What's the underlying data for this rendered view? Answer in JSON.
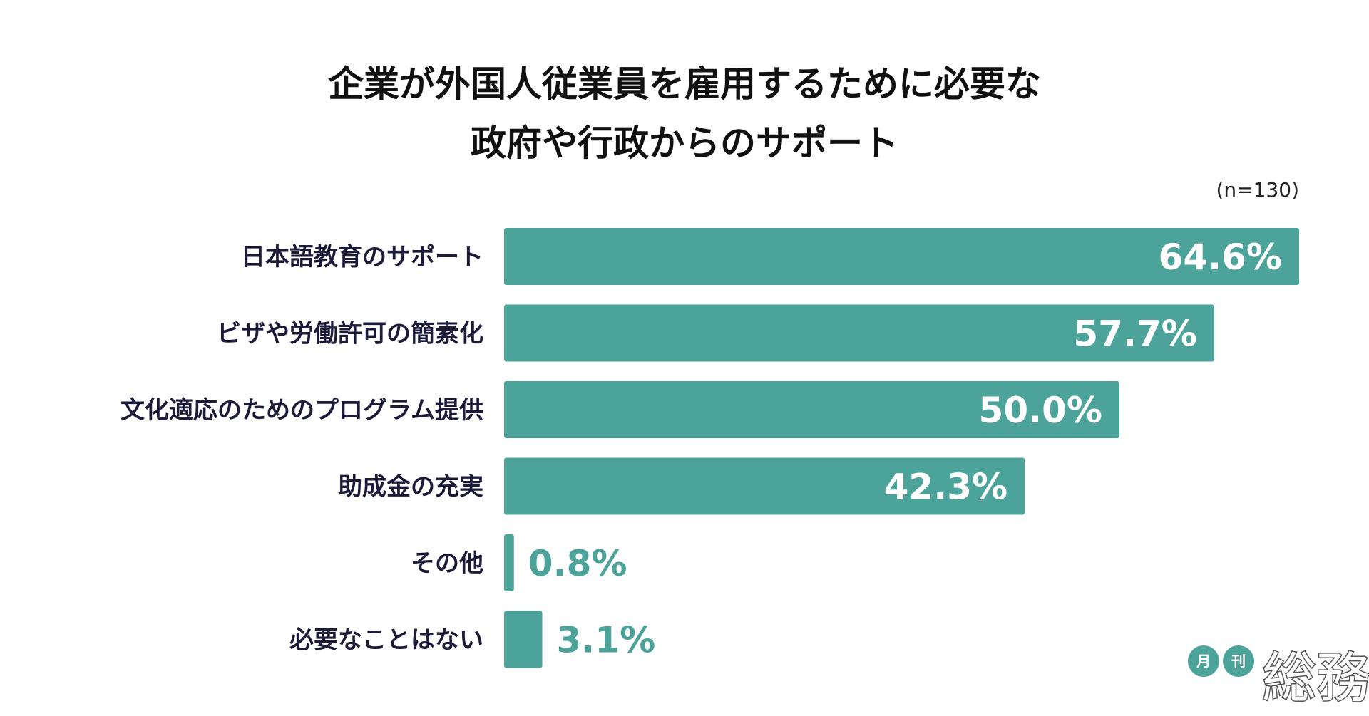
{
  "chart_data": {
    "type": "bar",
    "orientation": "horizontal",
    "title": [
      "企業が外国人従業員を雇用するために必要な",
      "政府や行政からのサポート"
    ],
    "note": "(n=130)",
    "categories": [
      "日本語教育のサポート",
      "ビザや労働許可の簡素化",
      "文化適応のためのプログラム提供",
      "助成金の充実",
      "その他",
      "必要なことはない"
    ],
    "values": [
      64.6,
      57.7,
      50.0,
      42.3,
      0.8,
      3.1
    ],
    "value_labels": [
      "64.6%",
      "57.7%",
      "50.0%",
      "42.3%",
      "0.8%",
      "3.1%"
    ],
    "unit": "%",
    "xlim": [
      0,
      64.6
    ],
    "grid": false,
    "legend": "none",
    "bar_color": "#4ba399",
    "inside_label_color": "#ffffff",
    "outside_label_color": "#4ba399"
  },
  "logo": {
    "circle1": "月",
    "circle2": "刊",
    "main": "総務",
    "circle_color": "#4ba399",
    "text_color": "#555555"
  }
}
